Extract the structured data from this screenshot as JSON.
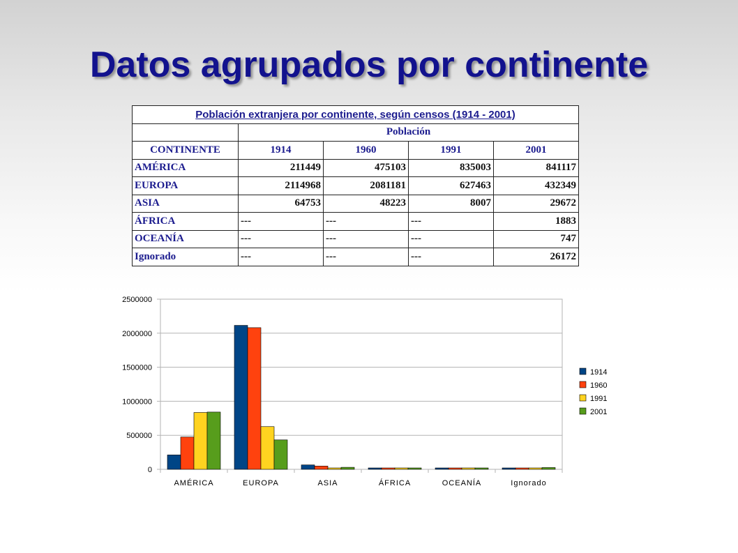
{
  "title": "Datos agrupados por continente",
  "table": {
    "caption": "Población extranjera por continente, según censos  (1914 - 2001)",
    "group_header": "Población",
    "row_header": "CONTINENTE",
    "columns": [
      "1914",
      "1960",
      "1991",
      "2001"
    ],
    "rows": [
      {
        "label": "AMÉRICA",
        "cells": [
          "211449",
          "475103",
          "835003",
          "841117"
        ]
      },
      {
        "label": "EUROPA",
        "cells": [
          "2114968",
          "2081181",
          "627463",
          "432349"
        ]
      },
      {
        "label": "ASIA",
        "cells": [
          "64753",
          "48223",
          "8007",
          "29672"
        ]
      },
      {
        "label": "ÁFRICA",
        "cells": [
          "---",
          "---",
          "---",
          "1883"
        ]
      },
      {
        "label": "OCEANÍA",
        "cells": [
          "---",
          "---",
          "---",
          "747"
        ]
      },
      {
        "label": "Ignorado",
        "cells": [
          "---",
          "---",
          "---",
          "26172"
        ]
      }
    ]
  },
  "chart_data": {
    "type": "bar",
    "categories": [
      "AMÉRICA",
      "EUROPA",
      "ASIA",
      "ÁFRICA",
      "OCEANÍA",
      "Ignorado"
    ],
    "series": [
      {
        "name": "1914",
        "color": "#004586",
        "values": [
          211449,
          2114968,
          64753,
          0,
          0,
          0
        ]
      },
      {
        "name": "1960",
        "color": "#ff420e",
        "values": [
          475103,
          2081181,
          48223,
          0,
          0,
          0
        ]
      },
      {
        "name": "1991",
        "color": "#ffd320",
        "values": [
          835003,
          627463,
          8007,
          0,
          0,
          0
        ]
      },
      {
        "name": "2001",
        "color": "#579d1c",
        "values": [
          841117,
          432349,
          29672,
          1883,
          747,
          26172
        ]
      }
    ],
    "ylim": [
      0,
      2500000
    ],
    "yticks": [
      "0",
      "500000",
      "1000000",
      "1500000",
      "2000000",
      "2500000"
    ],
    "grid": true,
    "legend": "right"
  }
}
